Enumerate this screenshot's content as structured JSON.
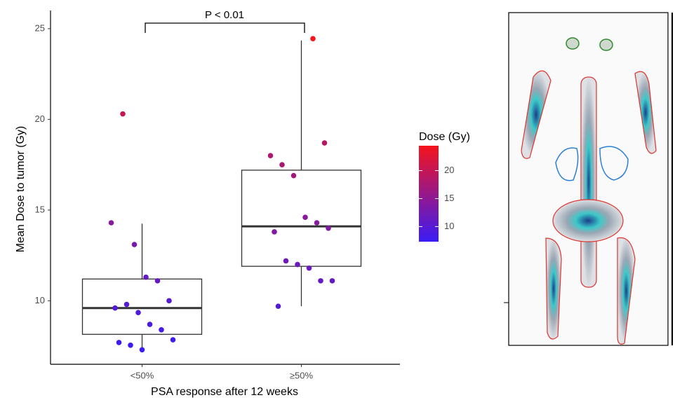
{
  "chart_data": {
    "type": "box",
    "x_label": "PSA response after 12 weeks",
    "y_label": "Mean Dose to tumor (Gy)",
    "annotation": "P < 0.01",
    "categories": [
      "<50%",
      "≥50%"
    ],
    "ylim": [
      6.5,
      26
    ],
    "yticks": [
      10,
      15,
      20,
      25
    ],
    "boxes": [
      {
        "whisker_low": 7.3,
        "q1": 8.15,
        "median": 9.6,
        "q3": 11.2,
        "whisker_high": 14.25
      },
      {
        "whisker_low": 9.7,
        "q1": 11.9,
        "median": 14.1,
        "q3": 17.2,
        "whisker_high": 24.35
      }
    ],
    "points": [
      [
        14.3,
        20.3,
        13.1,
        11.3,
        11.1,
        10.0,
        9.6,
        9.8,
        9.35,
        8.7,
        8.4,
        7.85,
        7.7,
        7.55,
        7.3
      ],
      [
        24.45,
        18.7,
        18.0,
        17.5,
        16.9,
        14.6,
        14.3,
        14.0,
        13.8,
        12.2,
        12.0,
        11.8,
        11.1,
        11.1,
        9.7
      ]
    ],
    "colorbar": {
      "title": "Dose (Gy)",
      "lim": [
        7.3,
        24.45
      ],
      "ticks": [
        10,
        15,
        20
      ],
      "low_color": "#3a1cf5",
      "high_color": "#f5141c"
    }
  }
}
